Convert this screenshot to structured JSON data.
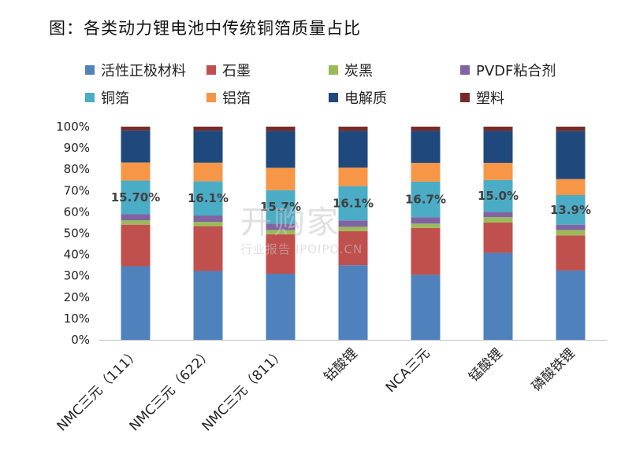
{
  "title": "图：各类动力锂电池中传统铜箔质量占比",
  "watermark": {
    "brand": "开购家",
    "url": "行业报告 IPOIPO.CN"
  },
  "chart_data": {
    "type": "bar",
    "stacked": true,
    "percent": true,
    "categories": [
      "NMC三元（111）",
      "NMC三元（622）",
      "NMC三元（811）",
      "钴酸锂",
      "NCA三元",
      "锰酸锂",
      "磷酸铁锂"
    ],
    "ylim": [
      0,
      100
    ],
    "yticks": [
      "0%",
      "10%",
      "20%",
      "30%",
      "40%",
      "50%",
      "60%",
      "70%",
      "80%",
      "90%",
      "100%"
    ],
    "legend_position": "top",
    "series": [
      {
        "name": "活性正极材料",
        "color": "#4F81BD",
        "values": [
          34.5,
          32.3,
          31.0,
          35.0,
          30.5,
          40.8,
          32.5
        ]
      },
      {
        "name": "石墨",
        "color": "#C0504D",
        "values": [
          19.5,
          21.0,
          18.5,
          16.0,
          22.0,
          14.2,
          16.5
        ]
      },
      {
        "name": "炭黑",
        "color": "#9BBB59",
        "values": [
          2.0,
          2.0,
          2.0,
          2.0,
          2.0,
          2.5,
          2.5
        ]
      },
      {
        "name": "PVDF粘合剂",
        "color": "#8064A2",
        "values": [
          3.0,
          3.0,
          3.0,
          3.0,
          3.0,
          2.5,
          2.5
        ]
      },
      {
        "name": "铜箔",
        "color": "#4BACC6",
        "values": [
          15.7,
          16.1,
          15.7,
          16.1,
          16.7,
          15.0,
          13.9
        ]
      },
      {
        "name": "铝箔",
        "color": "#F79646",
        "values": [
          8.5,
          8.7,
          10.5,
          8.7,
          8.8,
          8.0,
          7.5
        ]
      },
      {
        "name": "电解质",
        "color": "#1F497D",
        "values": [
          15.0,
          15.0,
          17.3,
          17.2,
          15.0,
          15.0,
          22.5
        ]
      },
      {
        "name": "塑料",
        "color": "#772C2A",
        "values": [
          1.8,
          1.9,
          2.0,
          2.0,
          2.0,
          2.0,
          2.1
        ]
      }
    ],
    "data_labels": {
      "series": "铜箔",
      "labels": [
        "15.70%",
        "16.1%",
        "15.7%",
        "16.1%",
        "16.7%",
        "15.0%",
        "13.9%"
      ]
    }
  }
}
